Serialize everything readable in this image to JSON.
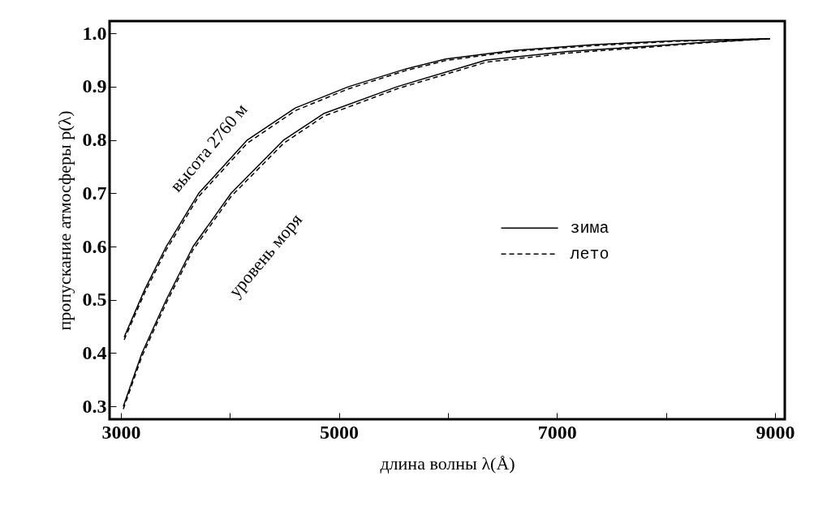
{
  "chart_data": {
    "type": "line",
    "xlabel": "длина волны λ(Å)",
    "ylabel": "пропускание атмосферы p(λ)",
    "xlim": [
      2896,
      9090
    ],
    "ylim": [
      0.276,
      1.023
    ],
    "xticks": [
      3000,
      {
        "value": 4000,
        "label": null
      },
      5000,
      {
        "value": 6000,
        "label": null
      },
      7000,
      {
        "value": 8000,
        "label": null
      },
      9000
    ],
    "yticks": [
      0.3,
      0.4,
      0.5,
      0.6,
      0.7,
      0.8,
      0.9,
      {
        "value": 1,
        "label": "1.0"
      }
    ],
    "legend": "right",
    "series": [
      {
        "name": "зима",
        "color": "#000000",
        "line_style": "solid",
        "x": [
          3030,
          3220,
          3416,
          3714,
          4160,
          4600,
          5089,
          5610,
          5981,
          6599,
          7342,
          8086,
          8955
        ],
        "values": [
          0.43,
          0.52,
          0.6,
          0.7,
          0.8,
          0.86,
          0.9,
          0.933,
          0.952,
          0.968,
          0.979,
          0.986,
          0.99
        ]
      },
      {
        "name": "лето",
        "color": "#000000",
        "line_style": "dashed",
        "x": [
          3030,
          3220,
          3416,
          3714,
          4160,
          4600,
          5089,
          5610,
          5981,
          6599,
          7342,
          8086,
          8955
        ],
        "values": [
          0.425,
          0.514,
          0.594,
          0.694,
          0.794,
          0.855,
          0.896,
          0.93,
          0.949,
          0.966,
          0.977,
          0.985,
          0.99
        ]
      },
      {
        "color": "#000000",
        "line_style": "solid",
        "x": [
          3022,
          3193,
          3416,
          3662,
          4011,
          4494,
          4866,
          5535,
          6353,
          7097,
          7840,
          8338,
          8955
        ],
        "values": [
          0.3,
          0.4,
          0.5,
          0.6,
          0.7,
          0.8,
          0.85,
          0.9,
          0.95,
          0.966,
          0.976,
          0.983,
          0.99
        ]
      },
      {
        "color": "#000000",
        "line_style": "dashed",
        "x": [
          3022,
          3193,
          3416,
          3662,
          4011,
          4494,
          4866,
          5535,
          6353,
          7097,
          7840,
          8338,
          8955
        ],
        "values": [
          0.295,
          0.394,
          0.494,
          0.594,
          0.694,
          0.794,
          0.845,
          0.896,
          0.946,
          0.963,
          0.974,
          0.982,
          0.99
        ]
      }
    ],
    "annotations": [
      "высота 2760 м",
      "уровень моря"
    ]
  }
}
